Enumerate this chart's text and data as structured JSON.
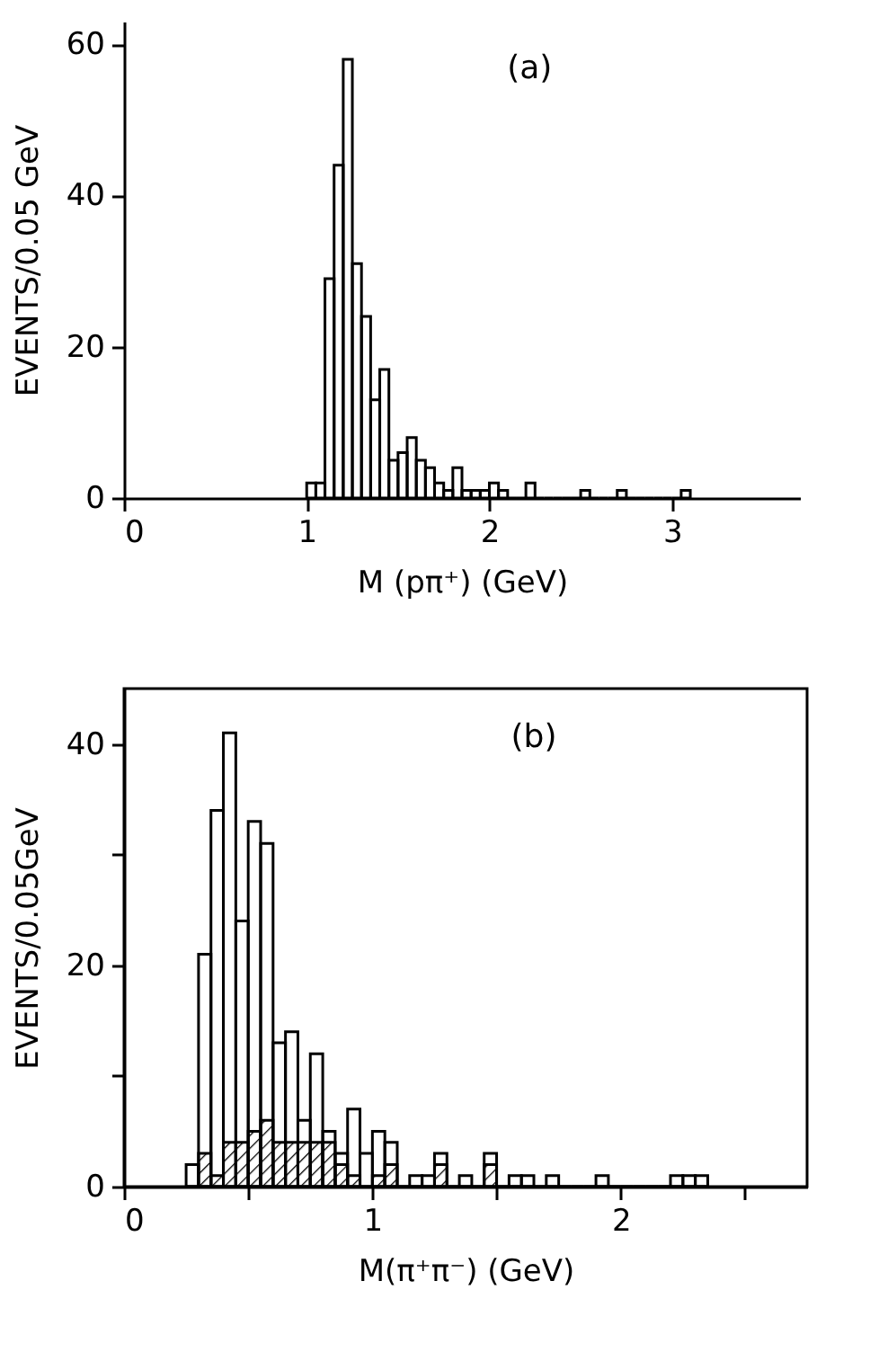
{
  "chart_data": [
    {
      "type": "histogram",
      "annotations": [
        "(a)"
      ],
      "xlabel": "M (pπ⁺) (GeV)",
      "ylabel": "EVENTS/0.05 GeV",
      "bins": [
        1.0,
        1.05,
        1.1,
        1.15,
        1.2,
        1.25,
        1.3,
        1.35,
        1.4,
        1.45,
        1.5,
        1.55,
        1.6,
        1.65,
        1.7,
        1.75,
        1.8,
        1.85,
        1.9,
        1.95,
        2.0,
        2.05,
        2.1,
        2.15,
        2.2,
        2.25,
        2.3,
        2.35,
        2.4,
        2.45,
        2.5,
        2.55,
        2.6,
        2.65,
        2.7,
        2.75,
        2.8,
        2.85,
        2.9,
        2.95,
        3.0,
        3.05,
        3.1
      ],
      "values": [
        2,
        2,
        29,
        44,
        58,
        31,
        24,
        13,
        17,
        5,
        6,
        8,
        5,
        4,
        2,
        1,
        4,
        1,
        1,
        1,
        2,
        1,
        0,
        0,
        2,
        0,
        0,
        0,
        0,
        0,
        1,
        0,
        0,
        0,
        1,
        0,
        0,
        0,
        0,
        0,
        0,
        1
      ],
      "color": "#000000",
      "xlim": [
        0,
        3.7
      ],
      "xticks": [
        0,
        1,
        2,
        3
      ],
      "ylim": [
        0,
        63
      ],
      "yticks": [
        0,
        20,
        40,
        60
      ],
      "grid": false
    },
    {
      "type": "histogram",
      "annotations": [
        "(b)"
      ],
      "xlabel": "M(π⁺π⁻) (GeV)",
      "ylabel": "EVENTS/0.05GeV",
      "bins": [
        0.25,
        0.3,
        0.35,
        0.4,
        0.45,
        0.5,
        0.55,
        0.6,
        0.65,
        0.7,
        0.75,
        0.8,
        0.85,
        0.9,
        0.95,
        1.0,
        1.05,
        1.1,
        1.15,
        1.2,
        1.25,
        1.3,
        1.35,
        1.4,
        1.45,
        1.5,
        1.55,
        1.6,
        1.65,
        1.7,
        1.75,
        1.8,
        1.85,
        1.9,
        1.95,
        2.0,
        2.05,
        2.1,
        2.15,
        2.2,
        2.25,
        2.3,
        2.35
      ],
      "series": [
        {
          "color": "#000000",
          "values": [
            2,
            21,
            34,
            41,
            24,
            33,
            31,
            13,
            14,
            6,
            12,
            5,
            3,
            7,
            3,
            5,
            4,
            0,
            1,
            1,
            3,
            0,
            1,
            0,
            3,
            0,
            1,
            1,
            0,
            1,
            0,
            0,
            0,
            1,
            0,
            0,
            0,
            0,
            0,
            1,
            1,
            1
          ]
        },
        {
          "color": "#000000",
          "values": [
            0,
            3,
            1,
            4,
            4,
            5,
            6,
            4,
            4,
            4,
            4,
            4,
            2,
            1,
            0,
            1,
            2,
            0,
            0,
            0,
            2,
            0,
            0,
            0,
            2,
            0,
            0,
            0,
            0,
            0,
            0,
            0,
            0,
            0,
            0,
            0,
            0,
            0,
            0,
            0,
            0,
            0
          ]
        }
      ],
      "xlim": [
        0,
        2.75
      ],
      "xticks": [
        0,
        {
          "value": 0.5,
          "label": null
        },
        1,
        {
          "value": 1.5,
          "label": null
        },
        2,
        {
          "value": 2.5,
          "label": null
        }
      ],
      "ylim": [
        0,
        45
      ],
      "yticks": [
        0,
        {
          "value": 10,
          "label": null
        },
        20,
        {
          "value": 30,
          "label": null
        },
        40
      ],
      "grid": false
    }
  ]
}
